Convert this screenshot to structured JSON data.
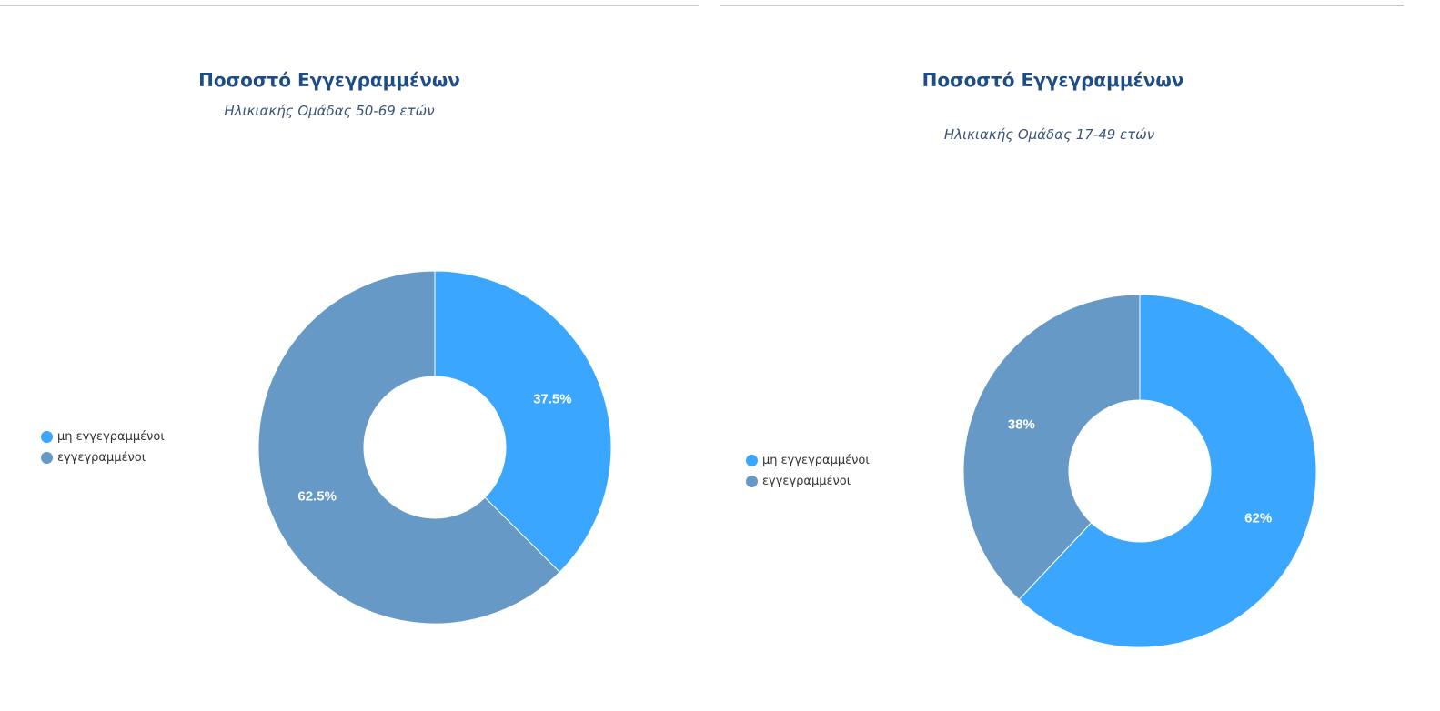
{
  "colors": {
    "not_registered": "#3aa6fe",
    "registered": "#6699c5"
  },
  "chart_data": [
    {
      "type": "pie",
      "donut": true,
      "title": "Ποσοστό Εγγεγραμμένων",
      "subtitle": "Ηλικιακής Ομάδας 50-69 ετών",
      "legend_position": "left",
      "slices": [
        {
          "name": "μη εγγεγραμμένοι",
          "value": 37.5,
          "label": "37.5%"
        },
        {
          "name": "εγγεγραμμένοι",
          "value": 62.5,
          "label": "62.5%"
        }
      ]
    },
    {
      "type": "pie",
      "donut": true,
      "title": "Ποσοστό Εγγεγραμμένων",
      "subtitle": "Ηλικιακής Ομάδας 17-49 ετών",
      "legend_position": "left",
      "slices": [
        {
          "name": "μη εγγεγραμμένοι",
          "value": 62,
          "label": "62%"
        },
        {
          "name": "εγγεγραμμένοι",
          "value": 38,
          "label": "38%"
        }
      ]
    }
  ]
}
